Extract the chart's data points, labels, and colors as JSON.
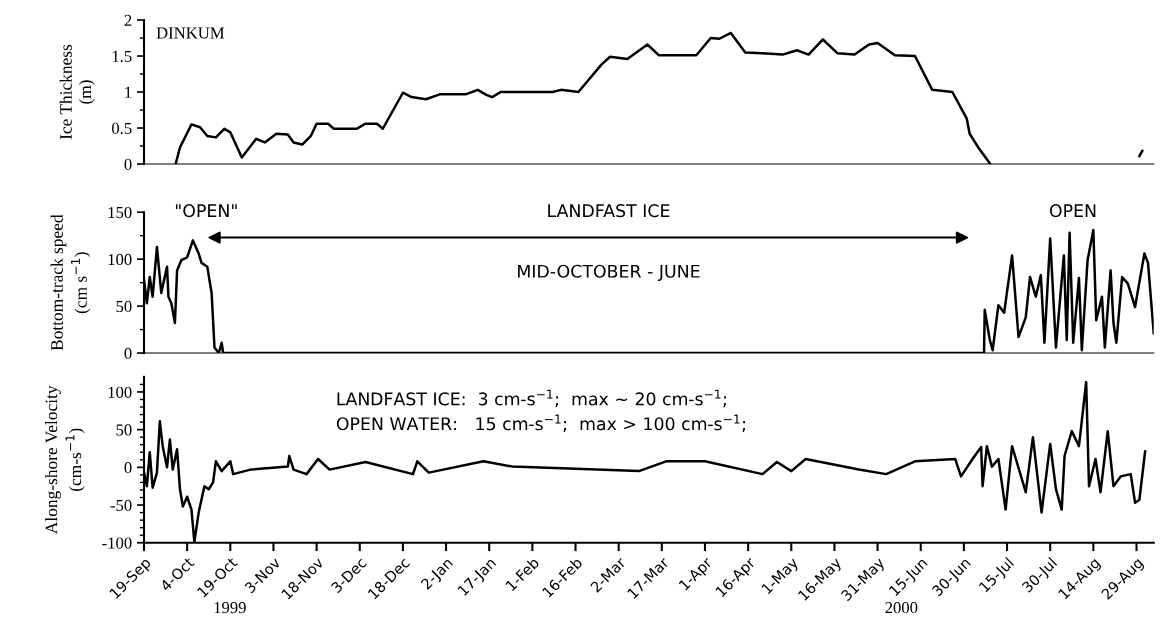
{
  "chart_data": [
    {
      "type": "line",
      "ylabel": "Ice Thickness\n(m)",
      "annotations": [
        "DINKUM"
      ],
      "xlim": [
        "1999-09-19",
        "2000-09-04"
      ],
      "ylim": [
        0,
        2
      ],
      "yticks": [
        0,
        0.5,
        1,
        1.5,
        2,
        {
          "value": 0.25,
          "label": null
        },
        {
          "value": 0.75,
          "label": null
        },
        {
          "value": 1.25,
          "label": null
        },
        {
          "value": 1.75,
          "label": null
        }
      ],
      "tick_labels": "y",
      "grid": false,
      "legend": false,
      "series": [
        {
          "color": "#000000",
          "x": [
            "1999-09-30",
            "1999-10-01T12:00",
            "1999-10-05T12:00",
            "1999-10-08T12:00",
            "1999-10-11",
            "1999-10-14",
            "1999-10-17",
            "1999-10-19",
            "1999-10-23",
            "1999-10-28",
            "1999-10-31",
            "1999-11-04",
            "1999-11-08",
            "1999-11-10",
            "1999-11-13",
            "1999-11-16",
            "1999-11-18",
            "1999-11-22",
            "1999-11-24",
            "1999-12-02",
            "1999-12-05",
            "1999-12-09",
            "1999-12-11",
            "1999-12-18",
            "1999-12-21",
            "1999-12-26",
            "1999-12-31",
            "2000-01-09",
            "2000-01-13",
            "2000-01-16",
            "2000-01-18",
            "2000-01-21",
            "2000-02-08",
            "2000-02-11",
            "2000-02-17",
            "2000-02-25",
            "2000-02-28",
            "2000-03-05",
            "2000-03-12",
            "2000-03-16",
            "2000-03-29",
            "2000-04-03",
            "2000-04-06",
            "2000-04-10",
            "2000-04-15",
            "2000-04-21",
            "2000-04-28",
            "2000-05-03",
            "2000-05-07",
            "2000-05-12",
            "2000-05-17",
            "2000-05-23",
            "2000-05-28",
            "2000-05-31",
            "2000-06-06",
            "2000-06-13",
            "2000-06-19",
            "2000-06-26",
            "2000-07-01",
            "2000-07-02",
            "2000-07-05",
            "2000-07-09",
            "2000-07-20",
            "2000-08-30",
            "2000-08-31"
          ],
          "values": [
            0,
            0.23,
            0.55,
            0.51,
            0.39,
            0.37,
            0.49,
            0.44,
            0.09,
            0.35,
            0.3,
            0.42,
            0.41,
            0.3,
            0.27,
            0.39,
            0.56,
            0.56,
            0.49,
            0.49,
            0.56,
            0.56,
            0.49,
            0.99,
            0.93,
            0.9,
            0.97,
            0.97,
            1.03,
            0.96,
            0.93,
            1.0,
            1.0,
            1.03,
            1.0,
            1.38,
            1.49,
            1.46,
            1.66,
            1.51,
            1.51,
            1.75,
            1.74,
            1.82,
            1.55,
            1.54,
            1.52,
            1.58,
            1.52,
            1.73,
            1.54,
            1.52,
            1.66,
            1.68,
            1.51,
            1.5,
            1.03,
            1.0,
            0.63,
            0.42,
            0.23,
            0.01,
            null,
            0.11,
            0.18
          ]
        }
      ]
    },
    {
      "type": "line",
      "ylabel": "Bottom-track speed\n(cm s$^{−1}$)",
      "annotations": [
        "\"OPEN\"",
        "LANDFAST ICE",
        "MID-OCTOBER - JUNE",
        "OPEN"
      ],
      "xlim": [
        "1999-09-19",
        "2000-09-04"
      ],
      "ylim": [
        0,
        150
      ],
      "yticks": [
        0,
        50,
        100,
        150,
        {
          "value": 25,
          "label": null
        },
        {
          "value": 75,
          "label": null
        },
        {
          "value": 125,
          "label": null
        }
      ],
      "tick_labels": "y",
      "grid": false,
      "legend": false,
      "series": [
        {
          "color": "#000000",
          "x": [
            "1999-09-19",
            "1999-09-20",
            "1999-09-21",
            "1999-09-22",
            "1999-09-23T12:00",
            "1999-09-25",
            "1999-09-27",
            "1999-09-27T12:00",
            "1999-09-28T12:00",
            "1999-09-29T18:00",
            "1999-09-30T12:00",
            "1999-10-02",
            "1999-10-04",
            "1999-10-06",
            "1999-10-08",
            "1999-10-09",
            "1999-10-11",
            "1999-10-12T12:00",
            "1999-10-13T12:00",
            "1999-10-15",
            "1999-10-16",
            "1999-10-16T12:00",
            "2000-07-07",
            "2000-07-07T06:00",
            "2000-07-09",
            "2000-07-10",
            "2000-07-12",
            "2000-07-14",
            "2000-07-16T18:00",
            "2000-07-19",
            "2000-07-21T12:00",
            "2000-07-23",
            "2000-07-25",
            "2000-07-26T18:00",
            "2000-07-28",
            "2000-07-30",
            "2000-08-01",
            "2000-08-03T18:00",
            "2000-08-04T18:00",
            "2000-08-05T18:00",
            "2000-08-07",
            "2000-08-09",
            "2000-08-10",
            "2000-08-12",
            "2000-08-14",
            "2000-08-15",
            "2000-08-17",
            "2000-08-18",
            "2000-08-20",
            "2000-08-21",
            "2000-08-22",
            "2000-08-24",
            "2000-08-26",
            "2000-08-28T12:00",
            "2000-08-31T18:00",
            "2000-09-02",
            "2000-09-04"
          ],
          "values": [
            78,
            53,
            81,
            60,
            113,
            64,
            92,
            60,
            53,
            32,
            88,
            99,
            102,
            120,
            106,
            96,
            92,
            64,
            6,
            0,
            11,
            0,
            0,
            46,
            14,
            3,
            51,
            43,
            104,
            17,
            38,
            81,
            60,
            83,
            11,
            122,
            6,
            104,
            14,
            128,
            11,
            80,
            3,
            99,
            131,
            35,
            60,
            6,
            88,
            32,
            11,
            81,
            74,
            49,
            106,
            96,
            21
          ]
        }
      ]
    },
    {
      "type": "line",
      "ylabel": "Along-shore Velocity\n(cm-s$^{−1}$)",
      "annotations": [
        "LANDFAST ICE:  3 cm-s$^{−1}$;  max ~ 20 cm-s$^{−1}$;",
        "OPEN WATER:   15 cm-s$^{−1}$;  max > 100 cm-s$^{−1}$;",
        "1999",
        "2000"
      ],
      "xlim": [
        "1999-09-19",
        "2000-09-04"
      ],
      "ylim": [
        -100,
        120
      ],
      "yticks": [
        -100,
        -50,
        0,
        50,
        100,
        {
          "value": -90,
          "label": null
        },
        {
          "value": -80,
          "label": null
        },
        {
          "value": -70,
          "label": null
        },
        {
          "value": -60,
          "label": null
        },
        {
          "value": -40,
          "label": null
        },
        {
          "value": -30,
          "label": null
        },
        {
          "value": -20,
          "label": null
        },
        {
          "value": -10,
          "label": null
        },
        {
          "value": 10,
          "label": null
        },
        {
          "value": 20,
          "label": null
        },
        {
          "value": 30,
          "label": null
        },
        {
          "value": 40,
          "label": null
        },
        {
          "value": 60,
          "label": null
        },
        {
          "value": 70,
          "label": null
        },
        {
          "value": 80,
          "label": null
        },
        {
          "value": 90,
          "label": null
        },
        {
          "value": 110,
          "label": null
        }
      ],
      "xticks": [
        {
          "value": "1999-09-19",
          "label": "19-Sep"
        },
        {
          "value": "1999-10-04",
          "label": "4-Oct"
        },
        {
          "value": "1999-10-19",
          "label": "19-Oct"
        },
        {
          "value": "1999-11-03",
          "label": "3-Nov"
        },
        {
          "value": "1999-11-18",
          "label": "18-Nov"
        },
        {
          "value": "1999-12-03",
          "label": "3-Dec"
        },
        {
          "value": "1999-12-18",
          "label": "18-Dec"
        },
        {
          "value": "2000-01-02",
          "label": "2-Jan"
        },
        {
          "value": "2000-01-17",
          "label": "17-Jan"
        },
        {
          "value": "2000-02-01",
          "label": "1-Feb"
        },
        {
          "value": "2000-02-16",
          "label": "16-Feb"
        },
        {
          "value": "2000-03-02",
          "label": "2-Mar"
        },
        {
          "value": "2000-03-17",
          "label": "17-Mar"
        },
        {
          "value": "2000-04-01",
          "label": "1-Apr"
        },
        {
          "value": "2000-04-16",
          "label": "16-Apr"
        },
        {
          "value": "2000-05-01",
          "label": "1-May"
        },
        {
          "value": "2000-05-16",
          "label": "16-May"
        },
        {
          "value": "2000-05-31",
          "label": "31-May"
        },
        {
          "value": "2000-06-15",
          "label": "15-Jun"
        },
        {
          "value": "2000-06-30",
          "label": "30-Jun"
        },
        {
          "value": "2000-07-15",
          "label": "15-Jul"
        },
        {
          "value": "2000-07-30",
          "label": "30-Jul"
        },
        {
          "value": "2000-08-14",
          "label": "14-Aug"
        },
        {
          "value": "2000-08-29",
          "label": "29-Aug"
        }
      ],
      "grid": false,
      "legend": false,
      "series": [
        {
          "color": "#000000",
          "x": [
            "1999-09-19",
            "1999-09-20",
            "1999-09-21",
            "1999-09-22",
            "1999-09-23T12:00",
            "1999-09-24T12:00",
            "1999-09-25T12:00",
            "1999-09-27",
            "1999-09-28",
            "1999-09-29",
            "1999-09-30T12:00",
            "1999-10-01T12:00",
            "1999-10-02T12:00",
            "1999-10-04",
            "1999-10-05T12:00",
            "1999-10-06T12:00",
            "1999-10-08",
            "1999-10-10",
            "1999-10-11T12:00",
            "1999-10-13",
            "1999-10-14",
            "1999-10-16",
            "1999-10-19",
            "1999-10-20",
            "1999-10-26",
            "1999-11-08",
            "1999-11-08T12:00",
            "1999-11-10",
            "1999-11-14T12:00",
            "1999-11-18T12:00",
            "1999-11-22T12:00",
            "1999-12-05",
            "1999-12-21T12:00",
            "1999-12-23",
            "1999-12-27",
            "2000-01-15",
            "2000-01-25",
            "2000-03-09",
            "2000-03-18T12:00",
            "2000-04-01",
            "2000-04-21",
            "2000-04-26",
            "2000-05-01",
            "2000-05-06",
            "2000-05-24T12:00",
            "2000-06-03",
            "2000-06-13",
            "2000-06-27",
            "2000-06-29",
            "2000-07-03",
            "2000-07-06",
            "2000-07-06T12:00",
            "2000-07-08",
            "2000-07-09T18:00",
            "2000-07-12",
            "2000-07-14T12:00",
            "2000-07-16T18:00",
            "2000-07-21T12:00",
            "2000-07-24",
            "2000-07-27",
            "2000-07-30",
            "2000-08-01",
            "2000-08-03",
            "2000-08-04",
            "2000-08-06T12:00",
            "2000-08-09",
            "2000-08-11T12:00",
            "2000-08-12T12:00",
            "2000-08-14T18:00",
            "2000-08-16T12:00",
            "2000-08-19",
            "2000-08-21",
            "2000-08-23T12:00",
            "2000-08-27",
            "2000-08-28T12:00",
            "2000-08-30",
            "2000-09-01"
          ],
          "values": [
            -7,
            -25,
            20,
            -27,
            -7,
            61,
            28,
            0,
            37,
            -3,
            24,
            -29,
            -52,
            -39,
            -56,
            -99,
            -60,
            -25,
            -29,
            -20,
            8,
            -5,
            8,
            -9,
            -3,
            1,
            15,
            -3,
            -9,
            11,
            -3,
            7,
            -9,
            8,
            -7,
            8,
            1,
            -5,
            8,
            8,
            -9,
            7,
            -5,
            11,
            -3,
            -9,
            8,
            11,
            -12,
            11,
            27,
            -25,
            28,
            1,
            11,
            -56,
            28,
            -33,
            40,
            -60,
            31,
            -29,
            -56,
            15,
            48,
            28,
            113,
            -25,
            11,
            -33,
            48,
            -25,
            -12,
            -9,
            -47,
            -43,
            21
          ]
        }
      ]
    }
  ]
}
